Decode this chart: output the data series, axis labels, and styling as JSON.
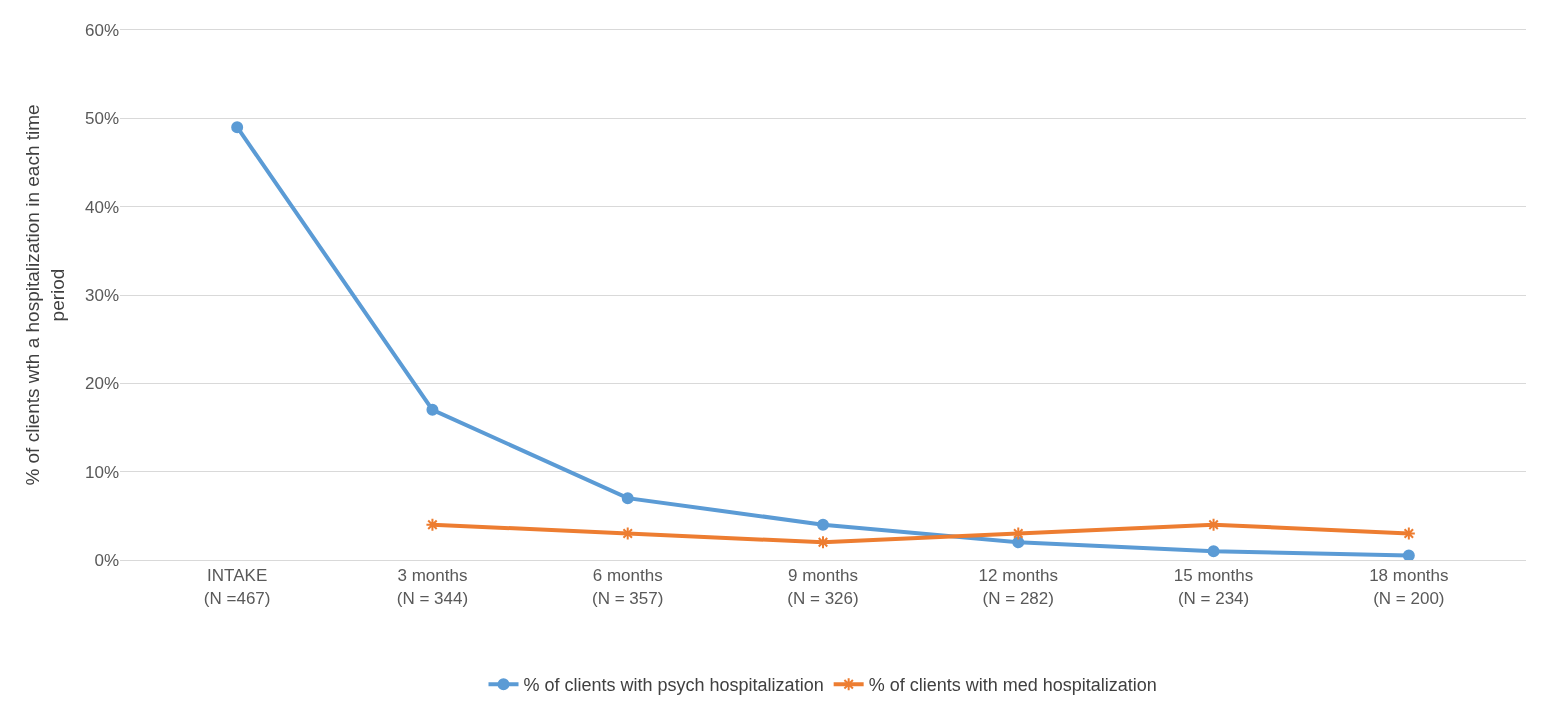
{
  "chart_data": {
    "type": "line",
    "ylabel": "% of clients wth a hospitalization in each time\nperiod",
    "categories": [
      "INTAKE\n(N =467)",
      "3 months\n(N = 344)",
      "6 months\n(N = 357)",
      "9 months\n(N = 326)",
      "12 months\n(N = 282)",
      "15 months\n(N = 234)",
      "18 months\n(N = 200)"
    ],
    "series": [
      {
        "name": "% of clients with psych hospitalization",
        "color": "#5b9bd5",
        "marker": "circle",
        "values": [
          49,
          17,
          7,
          4,
          2,
          1,
          0.5
        ]
      },
      {
        "name": "% of clients with med hospitalization",
        "color": "#ed7d31",
        "marker": "cross",
        "values": [
          null,
          4,
          3,
          2,
          3,
          4,
          3
        ]
      }
    ],
    "ylim": [
      0,
      60
    ],
    "yticks": [
      {
        "value": 0,
        "label": "0%"
      },
      {
        "value": 10,
        "label": "10%"
      },
      {
        "value": 20,
        "label": "20%"
      },
      {
        "value": 30,
        "label": "30%"
      },
      {
        "value": 40,
        "label": "40%"
      },
      {
        "value": 50,
        "label": "50%"
      },
      {
        "value": 60,
        "label": "60%"
      }
    ],
    "grid": "y",
    "legend": "bottom",
    "line_style": "solid"
  }
}
